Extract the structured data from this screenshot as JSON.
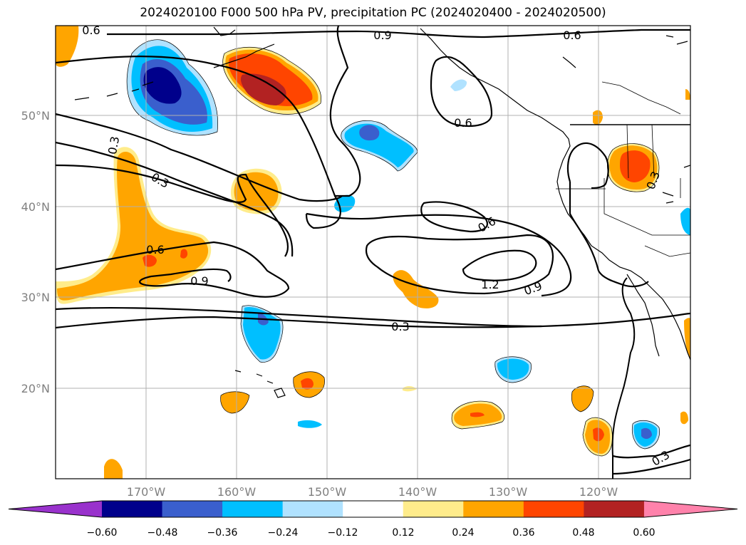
{
  "title": "2024020100 F000 500 hPa PV, precipitation PC (2024020400 - 2024020500)",
  "map": {
    "lat_labels": [
      "50°N",
      "40°N",
      "30°N",
      "20°N"
    ],
    "lon_labels": [
      "170°W",
      "160°W",
      "150°W",
      "140°W",
      "130°W",
      "120°W"
    ],
    "contour_labels": [
      "0.6",
      "0.9",
      "0.6",
      "0.3",
      "0.3",
      "0.6",
      "0.6",
      "0.9",
      "0.6",
      "1.2",
      "0.9",
      "0.3",
      "0.3",
      "0.3"
    ]
  },
  "colorbar": {
    "ticks": [
      "−0.60",
      "−0.48",
      "−0.36",
      "−0.24",
      "−0.12",
      "0.12",
      "0.24",
      "0.36",
      "0.48",
      "0.60"
    ],
    "colors": [
      "#9932cc",
      "#00008b",
      "#3a5fcd",
      "#00bfff",
      "#b0e2ff",
      "#ffffff",
      "#ffec8b",
      "#ffa500",
      "#ff4500",
      "#b22222",
      "#ff82ab"
    ]
  }
}
